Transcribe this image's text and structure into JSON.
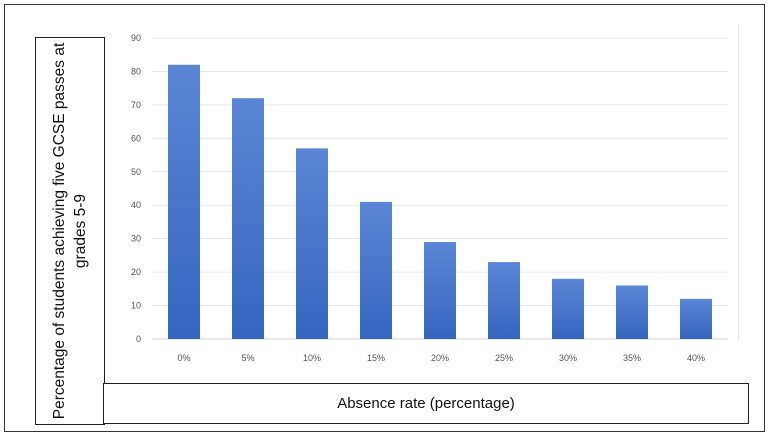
{
  "chart_data": {
    "type": "bar",
    "categories": [
      "0%",
      "5%",
      "10%",
      "15%",
      "20%",
      "25%",
      "30%",
      "35%",
      "40%"
    ],
    "values": [
      82,
      72,
      57,
      41,
      29,
      23,
      18,
      16,
      12
    ],
    "title": "",
    "xlabel": "Absence rate (percentage)",
    "ylabel": "Percentage of students achieving five GCSE passes at grades 5-9",
    "ylim": [
      0,
      90
    ],
    "yticks": [
      0,
      10,
      20,
      30,
      40,
      50,
      60,
      70,
      80,
      90
    ],
    "grid": true,
    "legend": "none",
    "bar_color": "#4472c4"
  }
}
